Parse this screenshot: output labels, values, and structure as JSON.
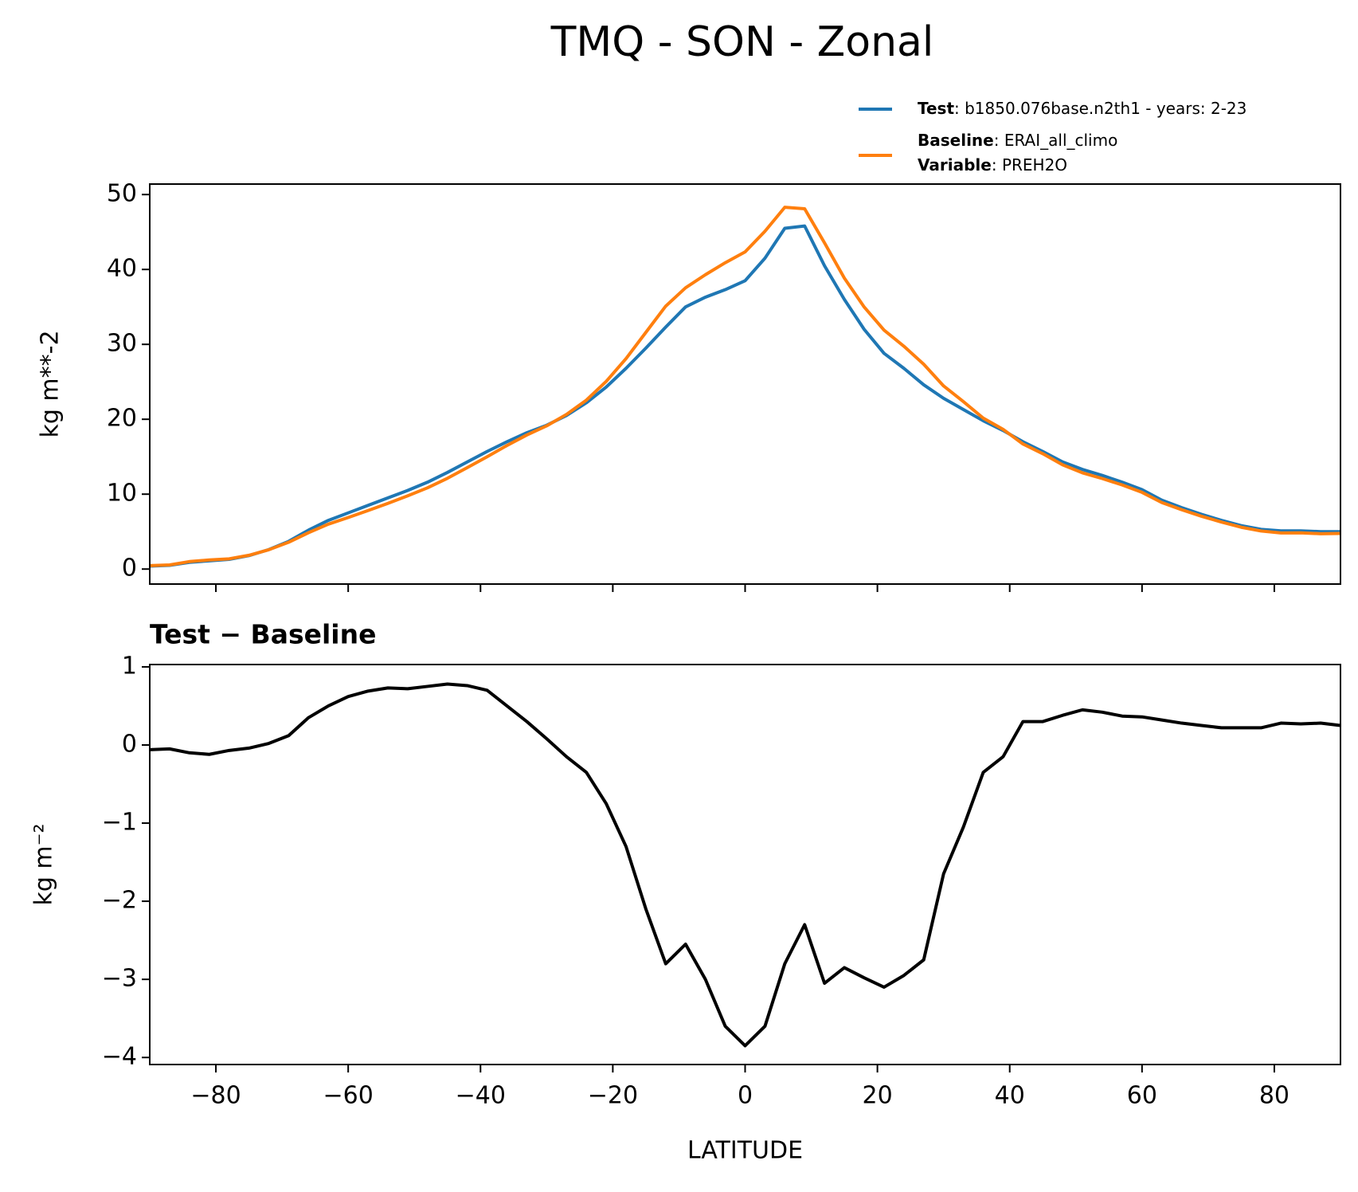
{
  "chart_data": [
    {
      "type": "line",
      "title": "TMQ - SON - Zonal",
      "ylabel": "kg m**-2",
      "x": [
        -90,
        -87,
        -84,
        -81,
        -78,
        -75,
        -72,
        -69,
        -66,
        -63,
        -60,
        -57,
        -54,
        -51,
        -48,
        -45,
        -42,
        -39,
        -36,
        -33,
        -30,
        -27,
        -24,
        -21,
        -18,
        -15,
        -12,
        -9,
        -6,
        -3,
        0,
        3,
        6,
        9,
        12,
        15,
        18,
        21,
        24,
        27,
        30,
        33,
        36,
        39,
        42,
        45,
        48,
        51,
        54,
        57,
        60,
        63,
        66,
        69,
        72,
        75,
        78,
        81,
        84,
        87,
        90
      ],
      "series": [
        {
          "name": "Test",
          "description": ": b1850.076base.n2th1 - years: 2-23",
          "color": "#1f77b4",
          "values": [
            0.4,
            0.5,
            0.9,
            1.1,
            1.3,
            1.8,
            2.6,
            3.7,
            5.2,
            6.5,
            7.5,
            8.5,
            9.5,
            10.5,
            11.6,
            12.9,
            14.3,
            15.7,
            17.0,
            18.2,
            19.2,
            20.5,
            22.2,
            24.3,
            26.8,
            29.5,
            32.3,
            35.0,
            36.3,
            37.3,
            38.5,
            41.5,
            45.5,
            45.8,
            40.5,
            36.0,
            32.0,
            28.8,
            26.8,
            24.6,
            22.8,
            21.3,
            19.8,
            18.5,
            17.0,
            15.7,
            14.3,
            13.3,
            12.5,
            11.6,
            10.6,
            9.2,
            8.2,
            7.3,
            6.5,
            5.8,
            5.3,
            5.1,
            5.1,
            5.0,
            5.0
          ]
        },
        {
          "name": "Baseline",
          "description": ": ERAI_all_climo",
          "color": "#ff7f0e",
          "values": [
            0.46,
            0.55,
            1.0,
            1.22,
            1.37,
            1.84,
            2.58,
            3.58,
            4.85,
            6.0,
            6.88,
            7.81,
            8.77,
            9.78,
            10.85,
            12.12,
            13.54,
            15.0,
            16.5,
            17.9,
            19.12,
            20.65,
            22.55,
            25.05,
            28.1,
            31.6,
            35.1,
            37.55,
            39.3,
            40.9,
            42.35,
            45.1,
            48.3,
            48.1,
            43.55,
            38.85,
            34.98,
            31.9,
            29.75,
            27.35,
            24.45,
            22.35,
            20.15,
            18.65,
            16.7,
            15.4,
            13.92,
            12.85,
            12.08,
            11.23,
            10.24,
            8.88,
            7.92,
            7.05,
            6.28,
            5.58,
            5.08,
            4.82,
            4.83,
            4.72,
            4.75
          ]
        }
      ],
      "legend_extra": {
        "label": "Variable",
        "text": ": PREH2O"
      },
      "xlim": [
        -90,
        90
      ],
      "xticks": [
        -80,
        -60,
        -40,
        -20,
        0,
        20,
        40,
        60,
        80
      ],
      "ylim": [
        -2,
        51.4
      ],
      "yticks": [
        0,
        10,
        20,
        30,
        40,
        50
      ],
      "legend": "upper right"
    },
    {
      "type": "line",
      "title": "Test − Baseline",
      "xlabel": "LATITUDE",
      "ylabel": "kg m⁻²",
      "x": [
        -90,
        -87,
        -84,
        -81,
        -78,
        -75,
        -72,
        -69,
        -66,
        -63,
        -60,
        -57,
        -54,
        -51,
        -48,
        -45,
        -42,
        -39,
        -36,
        -33,
        -30,
        -27,
        -24,
        -21,
        -18,
        -15,
        -12,
        -9,
        -6,
        -3,
        0,
        3,
        6,
        9,
        12,
        15,
        18,
        21,
        24,
        27,
        30,
        33,
        36,
        39,
        42,
        45,
        48,
        51,
        54,
        57,
        60,
        63,
        66,
        69,
        72,
        75,
        78,
        81,
        84,
        87,
        90
      ],
      "series": [
        {
          "color": "#000000",
          "values": [
            -0.06,
            -0.05,
            -0.1,
            -0.12,
            -0.07,
            -0.04,
            0.02,
            0.12,
            0.35,
            0.5,
            0.62,
            0.69,
            0.73,
            0.72,
            0.75,
            0.78,
            0.76,
            0.7,
            0.5,
            0.3,
            0.08,
            -0.15,
            -0.35,
            -0.75,
            -1.3,
            -2.1,
            -2.8,
            -2.55,
            -3.0,
            -3.6,
            -3.85,
            -3.6,
            -2.8,
            -2.3,
            -3.05,
            -2.85,
            -2.98,
            -3.1,
            -2.95,
            -2.75,
            -1.65,
            -1.05,
            -0.35,
            -0.15,
            0.3,
            0.3,
            0.38,
            0.45,
            0.42,
            0.37,
            0.36,
            0.32,
            0.28,
            0.25,
            0.22,
            0.22,
            0.22,
            0.28,
            0.27,
            0.28,
            0.25
          ]
        }
      ],
      "xlim": [
        -90,
        90
      ],
      "xticks": [
        {
          "value": -80,
          "label": "−80"
        },
        {
          "value": -60,
          "label": "−60"
        },
        {
          "value": -40,
          "label": "−40"
        },
        {
          "value": -20,
          "label": "−20"
        },
        0,
        20,
        40,
        60,
        80
      ],
      "ylim": [
        -4.09,
        1.03
      ],
      "yticks": [
        {
          "value": -4,
          "label": "−4"
        },
        {
          "value": -3,
          "label": "−3"
        },
        {
          "value": -2,
          "label": "−2"
        },
        {
          "value": -1,
          "label": "−1"
        },
        0,
        1
      ]
    }
  ]
}
